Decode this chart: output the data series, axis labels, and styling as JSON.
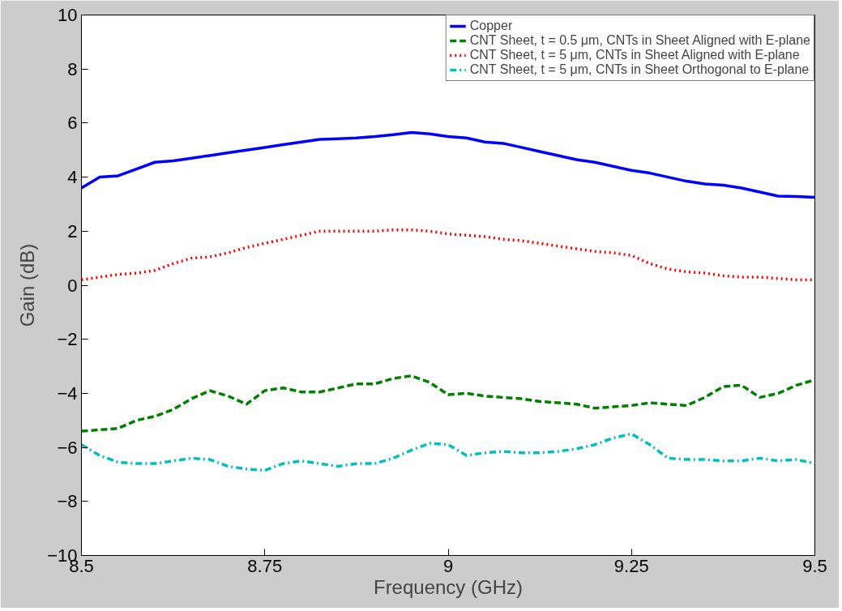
{
  "chart_data": {
    "type": "line",
    "xlabel": "Frequency (GHz)",
    "ylabel": "Gain (dB)",
    "x": [
      8.5,
      8.525,
      8.55,
      8.575,
      8.6,
      8.625,
      8.65,
      8.675,
      8.7,
      8.725,
      8.75,
      8.775,
      8.8,
      8.825,
      8.85,
      8.875,
      8.9,
      8.925,
      8.95,
      8.975,
      9.0,
      9.025,
      9.05,
      9.075,
      9.1,
      9.125,
      9.15,
      9.175,
      9.2,
      9.225,
      9.25,
      9.275,
      9.3,
      9.325,
      9.35,
      9.375,
      9.4,
      9.425,
      9.45,
      9.475,
      9.5
    ],
    "series": [
      {
        "name": "Copper",
        "color": "#0000ff",
        "line_style": "solid",
        "values": [
          3.6,
          4.0,
          4.05,
          4.3,
          4.55,
          4.6,
          4.7,
          4.8,
          4.9,
          5.0,
          5.1,
          5.2,
          5.3,
          5.4,
          5.42,
          5.45,
          5.5,
          5.57,
          5.65,
          5.6,
          5.5,
          5.45,
          5.3,
          5.25,
          5.1,
          4.95,
          4.8,
          4.65,
          4.55,
          4.4,
          4.25,
          4.15,
          4.0,
          3.85,
          3.75,
          3.7,
          3.6,
          3.45,
          3.3,
          3.28,
          3.25
        ]
      },
      {
        "name": "CNT Sheet, t = 0.5 μm, CNTs in Sheet Aligned with E-plane",
        "color": "#008000",
        "line_style": "dashed",
        "values": [
          -5.4,
          -5.35,
          -5.3,
          -5.0,
          -4.85,
          -4.6,
          -4.2,
          -3.9,
          -4.1,
          -4.4,
          -3.9,
          -3.8,
          -3.95,
          -3.95,
          -3.8,
          -3.65,
          -3.65,
          -3.45,
          -3.35,
          -3.6,
          -4.05,
          -4.0,
          -4.1,
          -4.15,
          -4.2,
          -4.3,
          -4.35,
          -4.4,
          -4.55,
          -4.5,
          -4.45,
          -4.35,
          -4.4,
          -4.45,
          -4.15,
          -3.75,
          -3.7,
          -4.15,
          -4.0,
          -3.7,
          -3.5
        ]
      },
      {
        "name": "CNT Sheet, t = 5 μm, CNTs in Sheet Aligned with E-plane",
        "color": "#ff0000",
        "line_style": "dotted",
        "values": [
          0.2,
          0.3,
          0.4,
          0.45,
          0.55,
          0.8,
          1.0,
          1.05,
          1.2,
          1.4,
          1.55,
          1.7,
          1.85,
          2.0,
          2.0,
          2.0,
          2.0,
          2.05,
          2.05,
          2.0,
          1.9,
          1.85,
          1.8,
          1.7,
          1.65,
          1.55,
          1.45,
          1.35,
          1.25,
          1.2,
          1.1,
          0.8,
          0.6,
          0.5,
          0.45,
          0.35,
          0.3,
          0.3,
          0.25,
          0.2,
          0.2
        ]
      },
      {
        "name": "CNT Sheet, t = 5 μm, CNTs in Sheet Orthogonal to E-plane",
        "color": "#00bfbf",
        "line_style": "dashdot",
        "values": [
          -5.9,
          -6.3,
          -6.55,
          -6.6,
          -6.6,
          -6.5,
          -6.4,
          -6.45,
          -6.7,
          -6.8,
          -6.85,
          -6.6,
          -6.5,
          -6.6,
          -6.7,
          -6.6,
          -6.6,
          -6.4,
          -6.1,
          -5.85,
          -5.9,
          -6.3,
          -6.2,
          -6.15,
          -6.2,
          -6.2,
          -6.15,
          -6.05,
          -5.9,
          -5.65,
          -5.5,
          -5.9,
          -6.4,
          -6.45,
          -6.45,
          -6.5,
          -6.5,
          -6.4,
          -6.5,
          -6.45,
          -6.6
        ]
      }
    ],
    "xlim": [
      8.5,
      9.5
    ],
    "xticks": [
      8.5,
      8.75,
      9,
      9.25,
      9.5
    ],
    "ylim": [
      -10,
      10
    ],
    "yticks": [
      -10,
      -8,
      -6,
      -4,
      -2,
      0,
      2,
      4,
      6,
      8,
      10
    ],
    "grid": false,
    "legend": "top right"
  }
}
